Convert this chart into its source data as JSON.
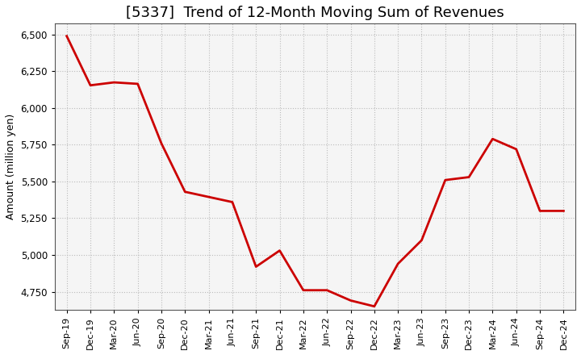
{
  "title": "[5337]  Trend of 12-Month Moving Sum of Revenues",
  "ylabel": "Amount (million yen)",
  "line_color": "#cc0000",
  "line_width": 2.0,
  "background_color": "#ffffff",
  "plot_bg_color": "#f5f5f5",
  "grid_color": "#bbbbbb",
  "ylim": [
    4625,
    6575
  ],
  "yticks": [
    4750,
    5000,
    5250,
    5500,
    5750,
    6000,
    6250,
    6500
  ],
  "x_labels": [
    "Sep-19",
    "Dec-19",
    "Mar-20",
    "Jun-20",
    "Sep-20",
    "Dec-20",
    "Mar-21",
    "Jun-21",
    "Sep-21",
    "Dec-21",
    "Mar-22",
    "Jun-22",
    "Sep-22",
    "Dec-22",
    "Mar-23",
    "Jun-23",
    "Sep-23",
    "Dec-23",
    "Mar-24",
    "Jun-24",
    "Sep-24",
    "Dec-24"
  ],
  "values": [
    6490,
    6155,
    6175,
    6165,
    5760,
    5430,
    5395,
    5360,
    4920,
    5030,
    4760,
    4760,
    4690,
    4650,
    4940,
    5100,
    5510,
    5530,
    5790,
    5720,
    5300,
    5300
  ],
  "title_fontsize": 13,
  "ylabel_fontsize": 9,
  "xtick_fontsize": 8,
  "ytick_fontsize": 8.5
}
